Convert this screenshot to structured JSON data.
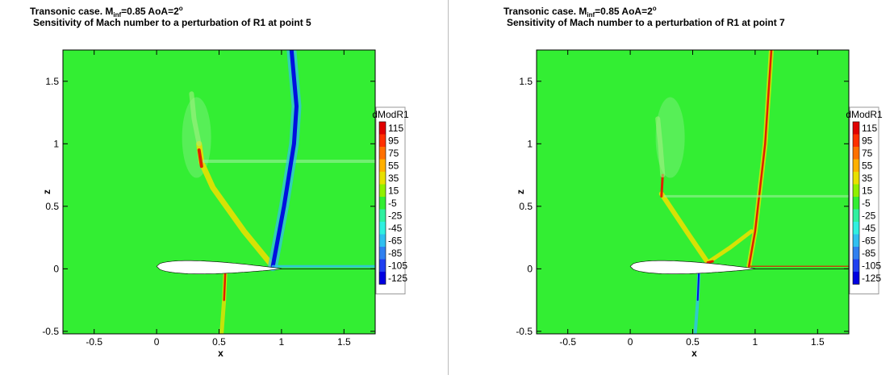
{
  "chart_data": [
    {
      "type": "contour",
      "title_parts": [
        "Transonic case.  M",
        "inf",
        "=0.85   AoA=2",
        "o"
      ],
      "subtitle": "Sensitivity of Mach number to a perturbation of R1 at point 5",
      "x_label": "x",
      "y_label": "z",
      "xlim": [
        -0.75,
        1.75
      ],
      "ylim": [
        -0.52,
        1.75
      ],
      "xticks": [
        -0.5,
        0,
        0.5,
        1,
        1.5
      ],
      "yticks": [
        -0.5,
        0,
        0.5,
        1,
        1.5
      ],
      "colorbar": {
        "title": "dModR1",
        "levels": [
          115,
          95,
          75,
          55,
          35,
          15,
          -5,
          -25,
          -45,
          -65,
          -85,
          -105,
          -125
        ],
        "colors": [
          "#e00000",
          "#ff3000",
          "#ff7000",
          "#ffb000",
          "#e8e000",
          "#90f000",
          "#33ee33",
          "#30f0a0",
          "#30f0e0",
          "#30c0f0",
          "#3080f0",
          "#2040f0",
          "#0000e0"
        ]
      }
    },
    {
      "type": "contour",
      "title_parts": [
        "Transonic case.  M",
        "inf",
        "=0.85   AoA=2",
        "o"
      ],
      "subtitle": "Sensitivity of Mach number to a perturbation of R1 at point 7",
      "x_label": "x",
      "y_label": "z",
      "xlim": [
        -0.75,
        1.75
      ],
      "ylim": [
        -0.52,
        1.75
      ],
      "xticks": [
        -0.5,
        0,
        0.5,
        1,
        1.5
      ],
      "yticks": [
        -0.5,
        0,
        0.5,
        1,
        1.5
      ],
      "colorbar": {
        "title": "dModR1",
        "levels": [
          115,
          95,
          75,
          55,
          35,
          15,
          -5,
          -25,
          -45,
          -65,
          -85,
          -105,
          -125
        ],
        "colors": [
          "#e00000",
          "#ff3000",
          "#ff7000",
          "#ffb000",
          "#e8e000",
          "#90f000",
          "#33ee33",
          "#30f0a0",
          "#30f0e0",
          "#30c0f0",
          "#3080f0",
          "#2040f0",
          "#0000e0"
        ]
      }
    }
  ]
}
